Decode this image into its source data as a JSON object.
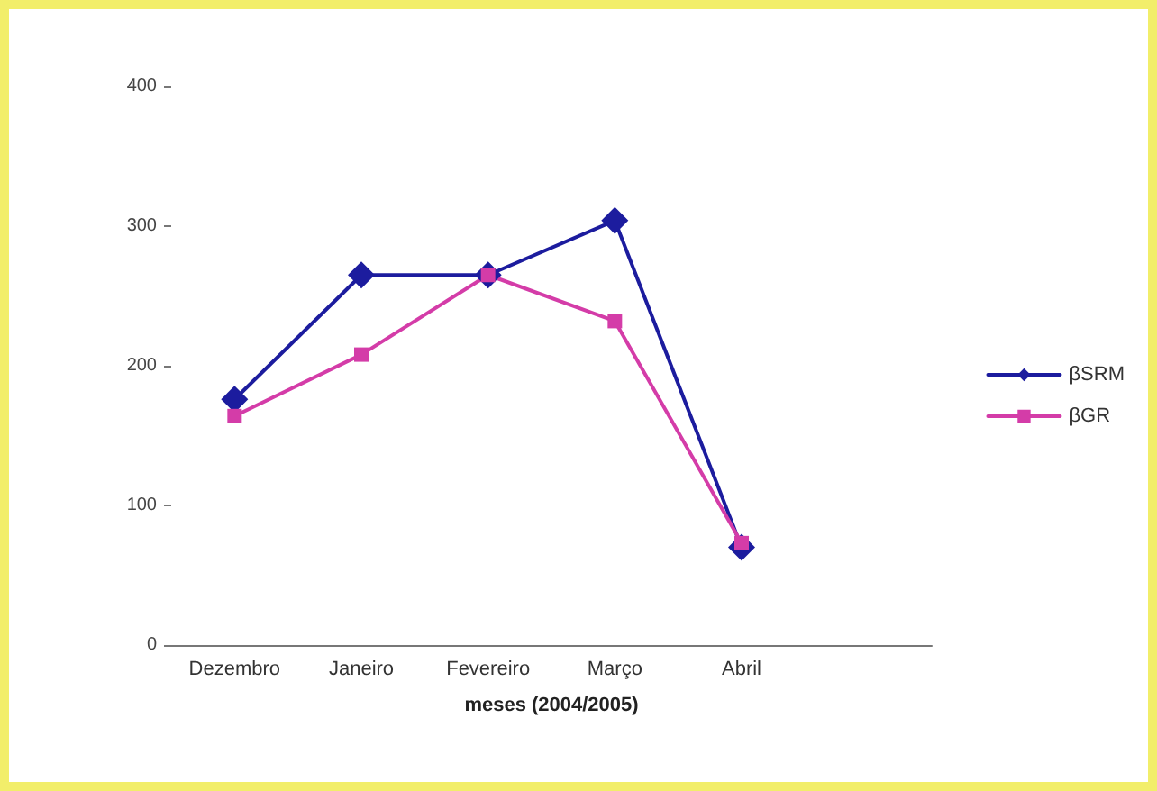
{
  "chart_data": {
    "type": "line",
    "xlabel": "meses (2004/2005)",
    "categories": [
      "Dezembro",
      "Janeiro",
      "Fevereiro",
      "Março",
      "Abril",
      null
    ],
    "series": [
      {
        "name": "βSRM",
        "color": "#1c1c9e",
        "marker": "diamond",
        "values": [
          176,
          265,
          265,
          304,
          70,
          null
        ]
      },
      {
        "name": "βGR",
        "color": "#d43ca8",
        "marker": "square",
        "values": [
          164,
          208,
          265,
          232,
          73,
          null
        ]
      }
    ],
    "ylim": [
      0,
      400
    ],
    "yticks": [
      0,
      100,
      200,
      300,
      400
    ],
    "grid": false,
    "legend": "right",
    "line_style": "solid"
  }
}
